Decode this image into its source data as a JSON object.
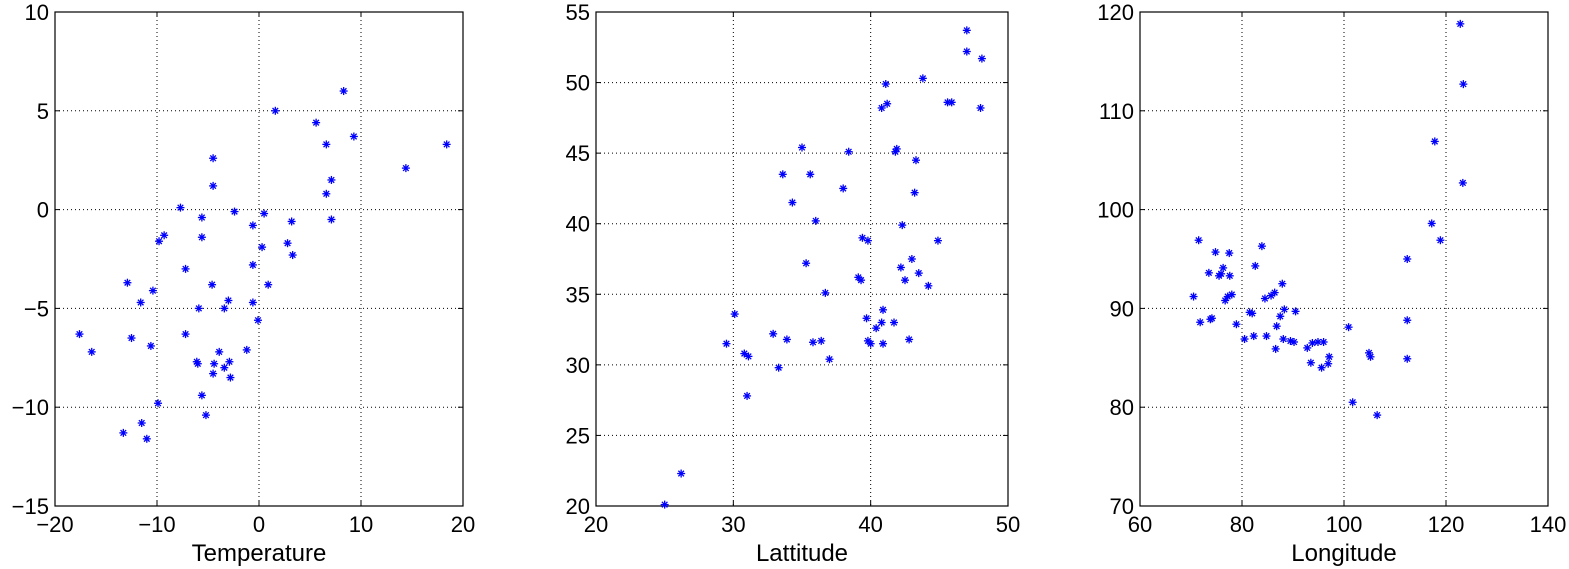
{
  "chart_data": [
    {
      "type": "scatter",
      "xlabel": "Temperature",
      "ylabel": "",
      "xlim": [
        -20,
        20
      ],
      "ylim": [
        -15,
        10
      ],
      "xticks": [
        "−20",
        "−10",
        "0",
        "10",
        "20"
      ],
      "yticks": [
        "−15",
        "−10",
        "−5",
        "0",
        "5",
        "10"
      ],
      "grid": true,
      "marker": "asterisk",
      "color": "#0000ff",
      "points": [
        [
          -17.6,
          -6.3
        ],
        [
          -16.4,
          -7.2
        ],
        [
          -13.3,
          -11.3
        ],
        [
          -12.9,
          -3.7
        ],
        [
          -12.5,
          -6.5
        ],
        [
          -11.6,
          -4.7
        ],
        [
          -11.5,
          -10.8
        ],
        [
          -11.0,
          -11.6
        ],
        [
          -10.6,
          -6.9
        ],
        [
          -10.4,
          -4.1
        ],
        [
          -9.9,
          -9.8
        ],
        [
          -9.8,
          -1.6
        ],
        [
          -9.3,
          -1.3
        ],
        [
          -7.7,
          0.1
        ],
        [
          -7.2,
          -3.0
        ],
        [
          -7.2,
          -6.3
        ],
        [
          -6.1,
          -7.7
        ],
        [
          -6.0,
          -7.8
        ],
        [
          -5.9,
          -5.0
        ],
        [
          -5.6,
          -9.4
        ],
        [
          -5.6,
          -0.4
        ],
        [
          -5.6,
          -1.4
        ],
        [
          -5.2,
          -10.4
        ],
        [
          -4.6,
          -3.8
        ],
        [
          -4.5,
          1.2
        ],
        [
          -4.5,
          2.6
        ],
        [
          -4.5,
          -8.3
        ],
        [
          -4.4,
          -7.8
        ],
        [
          -3.9,
          -7.2
        ],
        [
          -3.4,
          -8.0
        ],
        [
          -3.4,
          -5.0
        ],
        [
          -3.0,
          -4.6
        ],
        [
          -2.9,
          -7.7
        ],
        [
          -2.8,
          -8.5
        ],
        [
          -2.4,
          -0.1
        ],
        [
          -1.2,
          -7.1
        ],
        [
          -0.6,
          -2.8
        ],
        [
          -0.6,
          -0.8
        ],
        [
          -0.6,
          -4.7
        ],
        [
          -0.1,
          -5.6
        ],
        [
          0.3,
          -1.9
        ],
        [
          0.5,
          -0.2
        ],
        [
          0.9,
          -3.8
        ],
        [
          1.6,
          5.0
        ],
        [
          2.8,
          -1.7
        ],
        [
          3.2,
          -0.6
        ],
        [
          3.3,
          -2.3
        ],
        [
          5.6,
          4.4
        ],
        [
          6.6,
          3.3
        ],
        [
          6.6,
          0.8
        ],
        [
          7.1,
          1.5
        ],
        [
          7.1,
          -0.5
        ],
        [
          8.3,
          6.0
        ],
        [
          9.3,
          3.7
        ],
        [
          14.4,
          2.1
        ],
        [
          18.4,
          3.3
        ]
      ]
    },
    {
      "type": "scatter",
      "xlabel": "Lattitude",
      "ylabel": "",
      "xlim": [
        20,
        50
      ],
      "ylim": [
        20,
        55
      ],
      "xticks": [
        "20",
        "30",
        "40",
        "50"
      ],
      "yticks": [
        "20",
        "25",
        "30",
        "35",
        "40",
        "45",
        "50",
        "55"
      ],
      "grid": true,
      "marker": "asterisk",
      "color": "#0000ff",
      "points": [
        [
          25.0,
          20.1
        ],
        [
          26.2,
          22.3
        ],
        [
          29.5,
          31.5
        ],
        [
          30.1,
          33.6
        ],
        [
          30.8,
          30.8
        ],
        [
          31.1,
          30.6
        ],
        [
          31.0,
          27.8
        ],
        [
          32.9,
          32.2
        ],
        [
          33.3,
          29.8
        ],
        [
          33.6,
          43.5
        ],
        [
          33.9,
          31.8
        ],
        [
          34.3,
          41.5
        ],
        [
          35.0,
          45.4
        ],
        [
          35.3,
          37.2
        ],
        [
          35.6,
          43.5
        ],
        [
          35.8,
          31.6
        ],
        [
          36.0,
          40.2
        ],
        [
          36.4,
          31.7
        ],
        [
          36.7,
          35.1
        ],
        [
          37.0,
          30.4
        ],
        [
          38.0,
          42.5
        ],
        [
          38.4,
          45.1
        ],
        [
          39.1,
          36.2
        ],
        [
          39.3,
          36.0
        ],
        [
          39.4,
          39.0
        ],
        [
          39.8,
          38.8
        ],
        [
          39.7,
          33.3
        ],
        [
          39.8,
          31.7
        ],
        [
          40.0,
          31.5
        ],
        [
          40.4,
          32.6
        ],
        [
          40.8,
          48.2
        ],
        [
          40.8,
          33.0
        ],
        [
          40.9,
          31.5
        ],
        [
          40.9,
          33.9
        ],
        [
          41.1,
          49.9
        ],
        [
          41.2,
          48.5
        ],
        [
          41.7,
          33.0
        ],
        [
          41.8,
          45.1
        ],
        [
          41.9,
          45.3
        ],
        [
          42.2,
          36.9
        ],
        [
          42.3,
          39.9
        ],
        [
          42.5,
          36.0
        ],
        [
          42.8,
          31.8
        ],
        [
          43.0,
          37.5
        ],
        [
          43.2,
          42.2
        ],
        [
          43.3,
          44.5
        ],
        [
          43.5,
          36.5
        ],
        [
          43.8,
          50.3
        ],
        [
          44.2,
          35.6
        ],
        [
          44.9,
          38.8
        ],
        [
          45.6,
          48.6
        ],
        [
          45.9,
          48.6
        ],
        [
          47.0,
          53.7
        ],
        [
          47.0,
          52.2
        ],
        [
          48.0,
          48.2
        ],
        [
          48.1,
          51.7
        ]
      ]
    },
    {
      "type": "scatter",
      "xlabel": "Longitude",
      "ylabel": "",
      "xlim": [
        60,
        140
      ],
      "ylim": [
        70,
        120
      ],
      "xticks": [
        "60",
        "80",
        "100",
        "120",
        "140"
      ],
      "yticks": [
        "70",
        "80",
        "90",
        "100",
        "110",
        "120"
      ],
      "grid": true,
      "marker": "asterisk",
      "color": "#0000ff",
      "points": [
        [
          70.5,
          91.2
        ],
        [
          71.5,
          96.9
        ],
        [
          71.8,
          88.6
        ],
        [
          73.5,
          93.6
        ],
        [
          73.8,
          88.9
        ],
        [
          74.1,
          89.0
        ],
        [
          74.8,
          95.7
        ],
        [
          75.5,
          93.3
        ],
        [
          75.9,
          93.5
        ],
        [
          76.3,
          94.1
        ],
        [
          76.7,
          90.8
        ],
        [
          77.2,
          91.2
        ],
        [
          77.5,
          95.6
        ],
        [
          77.6,
          93.3
        ],
        [
          78.0,
          91.4
        ],
        [
          78.9,
          88.4
        ],
        [
          80.5,
          86.9
        ],
        [
          81.5,
          89.6
        ],
        [
          82.0,
          89.5
        ],
        [
          82.3,
          87.2
        ],
        [
          82.6,
          94.3
        ],
        [
          83.9,
          96.3
        ],
        [
          84.5,
          91.0
        ],
        [
          84.8,
          87.2
        ],
        [
          85.7,
          91.3
        ],
        [
          86.4,
          91.6
        ],
        [
          86.6,
          85.9
        ],
        [
          86.8,
          88.2
        ],
        [
          87.5,
          89.2
        ],
        [
          87.9,
          92.5
        ],
        [
          88.1,
          86.9
        ],
        [
          88.3,
          89.9
        ],
        [
          89.5,
          86.7
        ],
        [
          90.2,
          86.6
        ],
        [
          90.5,
          89.7
        ],
        [
          92.8,
          86.0
        ],
        [
          93.5,
          84.5
        ],
        [
          93.8,
          86.5
        ],
        [
          94.9,
          86.6
        ],
        [
          95.6,
          84.0
        ],
        [
          96.0,
          86.6
        ],
        [
          96.9,
          84.4
        ],
        [
          97.1,
          85.1
        ],
        [
          100.9,
          88.1
        ],
        [
          101.7,
          80.5
        ],
        [
          104.9,
          85.5
        ],
        [
          105.2,
          85.1
        ],
        [
          106.5,
          79.2
        ],
        [
          112.4,
          95.0
        ],
        [
          112.4,
          88.8
        ],
        [
          112.4,
          84.9
        ],
        [
          117.2,
          98.6
        ],
        [
          117.8,
          106.9
        ],
        [
          118.9,
          96.9
        ],
        [
          122.8,
          118.8
        ],
        [
          123.4,
          112.7
        ],
        [
          123.3,
          102.7
        ]
      ]
    }
  ]
}
